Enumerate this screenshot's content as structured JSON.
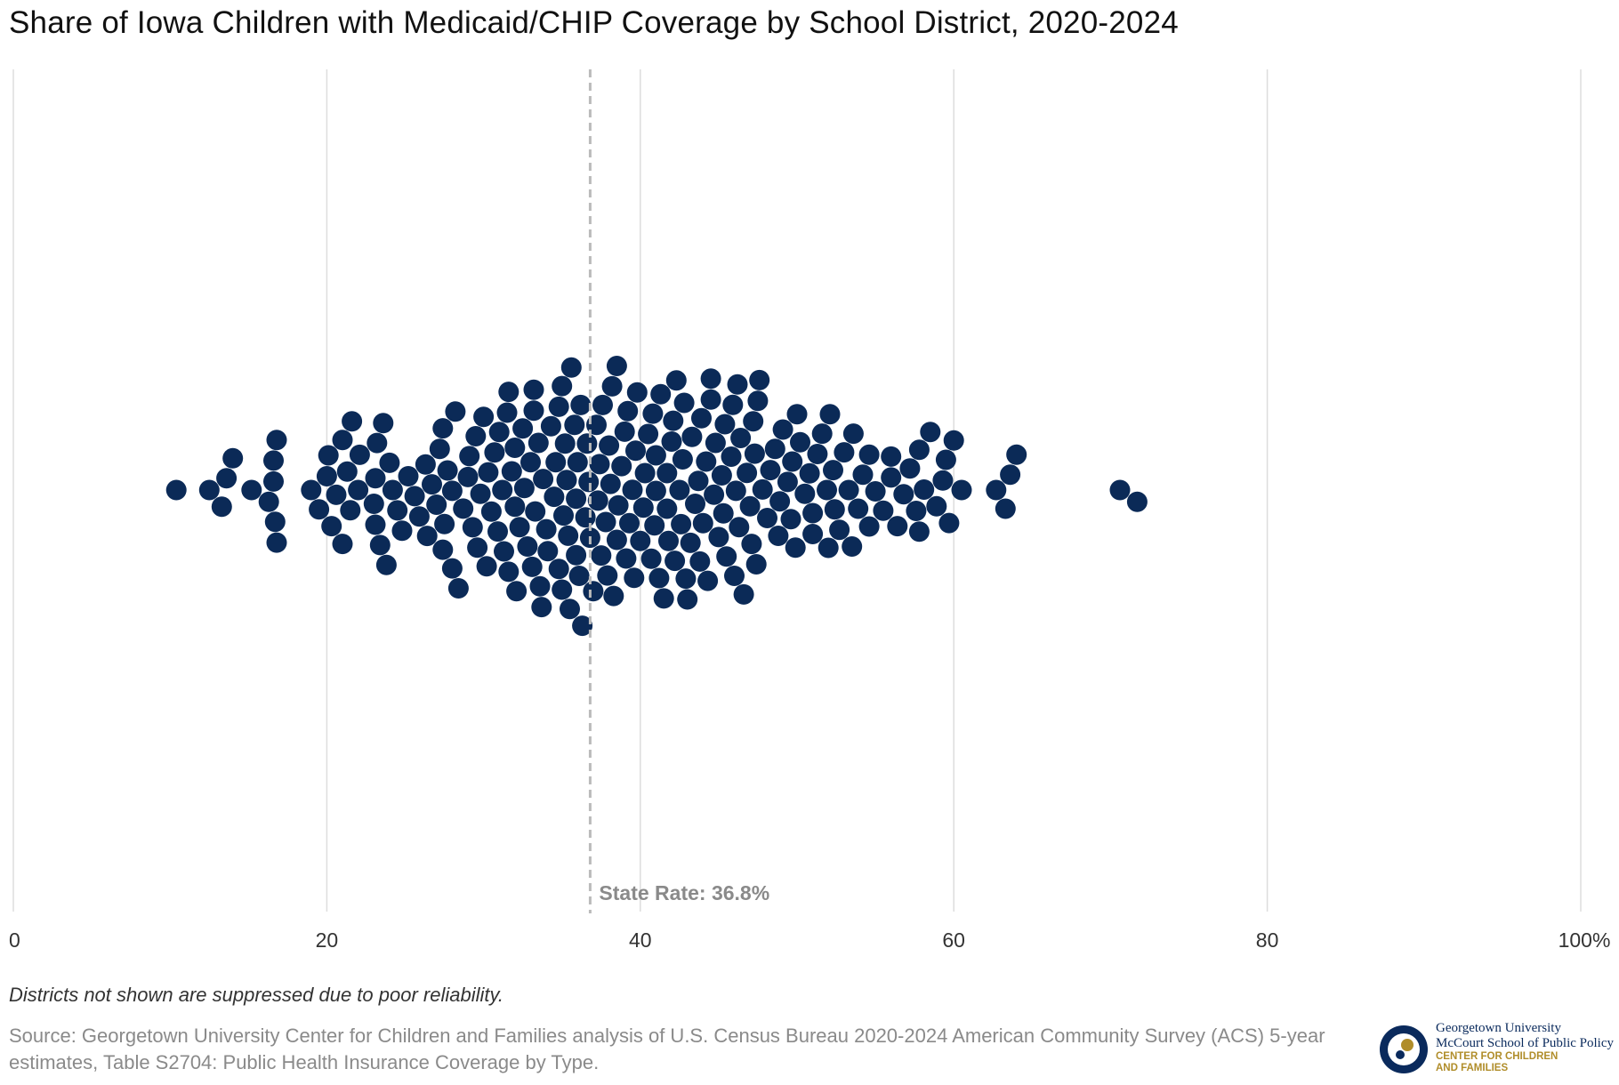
{
  "title": "Share of Iowa Children with Medicaid/CHIP Coverage by School District, 2020-2024",
  "note": "Districts not shown are suppressed due to poor reliability.",
  "source": "Source: Georgetown University Center for Children and Families analysis of U.S. Census Bureau 2020-2024 American Community Survey (ACS) 5-year estimates, Table S2704: Public Health Insurance Coverage by Type.",
  "logo": {
    "line1": "Georgetown University",
    "line2": "McCourt School of Public Policy",
    "line3": "CENTER FOR CHILDREN",
    "line4": "AND FAMILIES"
  },
  "colors": {
    "dot": "#0b2a57",
    "grid": "#dddddd",
    "ref_line": "#bbbbbb",
    "ref_label": "#8a8a8a",
    "tick": "#333333"
  },
  "chart_data": {
    "type": "scatter",
    "subtype": "beeswarm",
    "title": "Share of Iowa Children with Medicaid/CHIP Coverage by School District, 2020-2024",
    "xlabel": "",
    "ylabel": "",
    "xlim": [
      0,
      100
    ],
    "x_ticks": [
      0,
      20,
      40,
      60,
      80,
      100
    ],
    "x_tick_labels": [
      "0",
      "20",
      "40",
      "60",
      "80",
      "100%"
    ],
    "grid": true,
    "reference_line": {
      "value": 36.8,
      "label": "State Rate: 36.8%"
    },
    "values": [
      10.4,
      12.5,
      13.3,
      14.0,
      15.2,
      16.3,
      16.6,
      16.6,
      16.7,
      16.8,
      16.8,
      13.6,
      19.0,
      19.5,
      20.0,
      20.1,
      20.3,
      20.6,
      21.0,
      21.0,
      21.3,
      21.5,
      21.6,
      22.0,
      22.1,
      23.0,
      23.1,
      23.2,
      23.4,
      23.6,
      23.8,
      24.0,
      24.2,
      24.5,
      24.8,
      25.2,
      25.6,
      25.9,
      26.3,
      26.4,
      26.7,
      27.0,
      27.2,
      27.4,
      27.5,
      27.7,
      28.0,
      28.2,
      28.4,
      28.7,
      29.0,
      29.1,
      29.3,
      29.6,
      29.8,
      30.0,
      30.2,
      30.3,
      30.5,
      30.7,
      30.9,
      31.0,
      31.3,
      31.5,
      31.6,
      31.8,
      32.0,
      32.1,
      32.3,
      32.5,
      32.6,
      32.8,
      33.0,
      33.1,
      33.2,
      33.3,
      33.5,
      33.6,
      33.8,
      34.0,
      34.1,
      34.3,
      34.5,
      34.6,
      34.8,
      35.0,
      35.1,
      35.2,
      35.3,
      35.5,
      35.6,
      35.8,
      35.9,
      36.0,
      36.2,
      36.3,
      36.5,
      36.6,
      36.8,
      37.0,
      37.2,
      37.3,
      37.5,
      37.6,
      37.8,
      38.0,
      38.1,
      38.3,
      38.5,
      38.6,
      38.8,
      39.0,
      39.2,
      39.3,
      39.5,
      39.7,
      39.8,
      40.0,
      40.2,
      40.3,
      40.5,
      40.7,
      40.8,
      41.0,
      41.2,
      41.3,
      41.5,
      41.7,
      41.8,
      42.0,
      42.2,
      42.3,
      42.5,
      42.7,
      42.8,
      43.0,
      43.2,
      43.3,
      43.5,
      43.7,
      43.8,
      44.0,
      44.2,
      44.3,
      44.5,
      44.7,
      44.8,
      45.0,
      45.2,
      45.3,
      45.5,
      45.8,
      46.0,
      46.2,
      46.4,
      46.6,
      46.8,
      47.0,
      47.2,
      47.4,
      47.6,
      47.8,
      48.1,
      48.3,
      48.6,
      48.9,
      49.1,
      49.4,
      49.7,
      49.9,
      50.2,
      50.5,
      50.8,
      51.0,
      51.3,
      51.6,
      51.9,
      52.1,
      52.4,
      52.7,
      53.0,
      53.3,
      53.6,
      53.9,
      54.2,
      54.6,
      55.0,
      55.5,
      56.0,
      56.4,
      56.8,
      57.2,
      57.6,
      57.8,
      58.1,
      58.5,
      58.9,
      59.3,
      59.7,
      60.0,
      60.5,
      62.7,
      63.3,
      63.6,
      64.0,
      23.1,
      27.4,
      31.6,
      35.4,
      36.7,
      38.5,
      42.1,
      46.1,
      47.1,
      50.0,
      52.3,
      54.6,
      57.8,
      59.5,
      28.0,
      32.0,
      35.0,
      38.2,
      41.0,
      44.5,
      47.5,
      51.0,
      53.5,
      56.0,
      33.2,
      36.1,
      39.6,
      42.6,
      45.4,
      48.8,
      52.0,
      34.8,
      37.4,
      40.9,
      43.9,
      47.3,
      70.6,
      71.7,
      31.2,
      35.9,
      39.1,
      42.9,
      46.3,
      29.5,
      33.7,
      37.9,
      41.7,
      45.9,
      49.6
    ]
  }
}
